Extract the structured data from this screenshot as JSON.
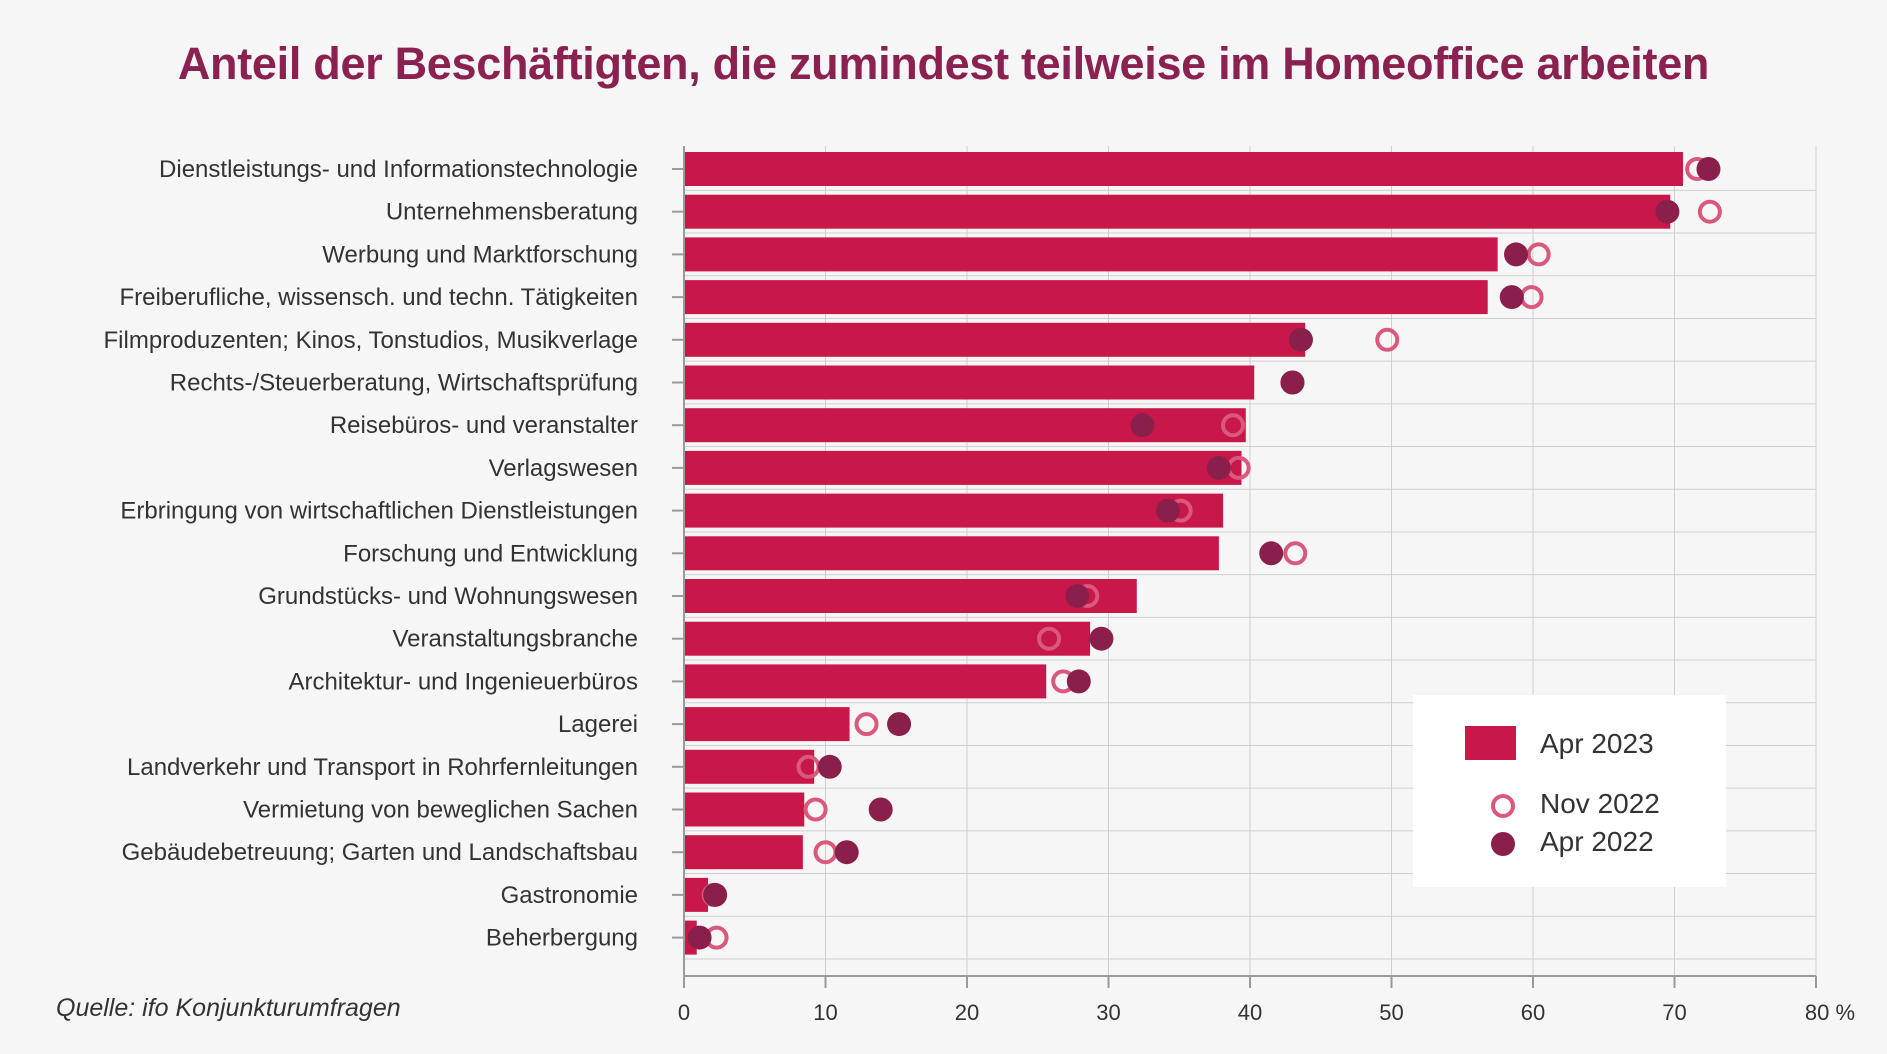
{
  "chart_data": {
    "type": "bar",
    "orientation": "horizontal",
    "title": "Anteil der Beschäftigten, die zumindest teilweise im Homeoffice arbeiten",
    "source": "Quelle: ifo Konjunkturumfragen",
    "xlim": [
      0,
      80
    ],
    "x_ticks": [
      "0",
      "10",
      "20",
      "30",
      "40",
      "50",
      "60",
      "70",
      "80 %"
    ],
    "grid": true,
    "legend_position": "bottom-right",
    "categories": [
      "Dienstleistungs- und Informationstechnologie",
      "Unternehmensberatung",
      "Werbung und Marktforschung",
      "Freiberufliche, wissensch. und techn. Tätigkeiten",
      "Filmproduzenten; Kinos, Tonstudios, Musikverlage",
      "Rechts-/Steuerberatung, Wirtschaftsprüfung",
      "Reisebüros- und veranstalter",
      "Verlagswesen",
      "Erbringung von wirtschaftlichen Dienstleistungen",
      "Forschung und Entwicklung",
      "Grundstücks- und Wohnungswesen",
      "Veranstaltungsbranche",
      "Architektur- und Ingenieuerbüros",
      "Lagerei",
      "Landverkehr und Transport in Rohrfernleitungen",
      "Vermietung von beweglichen Sachen",
      "Gebäudebetreuung; Garten und Landschaftsbau",
      "Gastronomie",
      "Beherbergung"
    ],
    "series": [
      {
        "name": "Apr 2023",
        "mark": "bar",
        "color": "#c8184a",
        "values": [
          70.6,
          69.7,
          57.5,
          56.8,
          43.9,
          40.3,
          39.7,
          39.4,
          38.1,
          37.8,
          32.0,
          28.7,
          25.6,
          11.7,
          9.2,
          8.5,
          8.4,
          1.7,
          0.9
        ]
      },
      {
        "name": "Nov 2022",
        "mark": "open-circle",
        "color": "#d9587c",
        "values": [
          71.6,
          72.5,
          60.4,
          59.9,
          49.7,
          43.0,
          38.8,
          39.2,
          35.1,
          43.2,
          28.5,
          25.8,
          26.8,
          12.9,
          8.8,
          9.3,
          10.0,
          2.1,
          2.3
        ]
      },
      {
        "name": "Apr 2022",
        "mark": "filled-circle",
        "color": "#8b1f4b",
        "values": [
          72.4,
          69.5,
          58.8,
          58.5,
          43.6,
          43.0,
          32.4,
          37.8,
          34.2,
          41.5,
          27.8,
          29.5,
          27.9,
          15.2,
          10.3,
          13.9,
          11.5,
          2.2,
          1.1
        ]
      }
    ]
  },
  "colors": {
    "background": "#f6f6f6",
    "title": "#8b2150",
    "grid": "#cfcfcf",
    "axis": "#9a9a9a",
    "text": "#333333"
  }
}
